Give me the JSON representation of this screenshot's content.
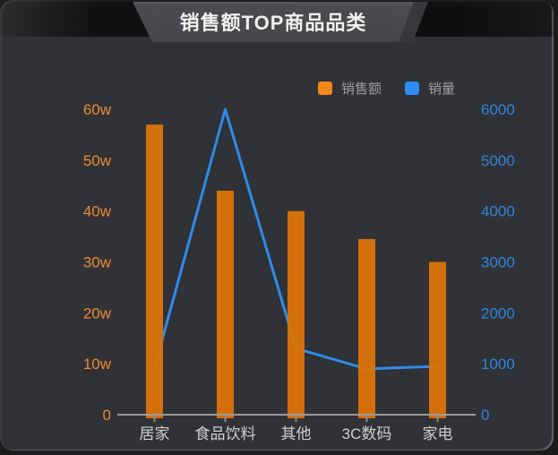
{
  "header": {
    "title": "销售额TOP商品品类"
  },
  "legend": {
    "items": [
      {
        "label": "销售额",
        "color": "#f0881c",
        "type": "bar"
      },
      {
        "label": "销量",
        "color": "#2d8cf0",
        "type": "line"
      }
    ]
  },
  "chart_data": {
    "type": "bar+line combo",
    "title": "销售额TOP商品品类",
    "categories": [
      "居家",
      "食品饮料",
      "其他",
      "3C数码",
      "家电"
    ],
    "series": [
      {
        "name": "销售额",
        "type": "bar",
        "axis": "left",
        "unit": "w (万)",
        "color": "#dd7409",
        "values": [
          57,
          44,
          40,
          34.5,
          30
        ]
      },
      {
        "name": "销量",
        "type": "line",
        "axis": "right",
        "unit": "",
        "color": "#2e8ce8",
        "values": [
          920,
          6000,
          1300,
          900,
          950
        ]
      }
    ],
    "left_axis": {
      "min": 0,
      "max": 60,
      "tick_labels": [
        "0",
        "10w",
        "20w",
        "30w",
        "40w",
        "50w",
        "60w"
      ],
      "color": "#ee8a30"
    },
    "right_axis": {
      "min": 0,
      "max": 6000,
      "tick_labels": [
        "0",
        "1000",
        "2000",
        "3000",
        "4000",
        "5000",
        "6000"
      ],
      "color": "#2e86dc"
    },
    "x_axis": {
      "label_color": "#cfd0d2",
      "line_color": "#9c9c9c"
    },
    "grid": false,
    "legend_position": "top-right",
    "background": "#303237"
  }
}
